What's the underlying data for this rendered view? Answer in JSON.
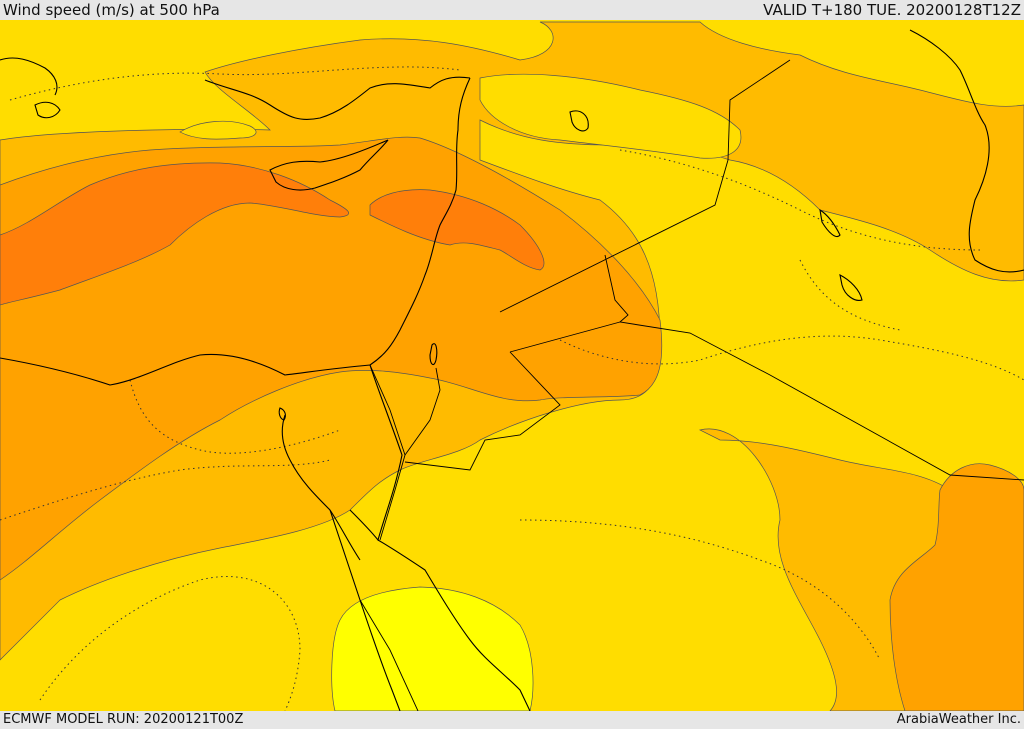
{
  "header": {
    "title": "Wind speed (m/s) at 500 hPa",
    "valid": "VALID T+180 TUE. 20200128T12Z"
  },
  "footer": {
    "model_run": "ECMWF MODEL RUN: 20200121T00Z",
    "credit": "ArabiaWeather Inc."
  },
  "colors": {
    "band_lightest": "#ffff00",
    "band_light": "#ffdd00",
    "band_mid": "#ffbb00",
    "band_strong": "#ffa200",
    "band_strongest": "#ff7f0a",
    "coastline": "#000000",
    "contour": "#555555"
  }
}
